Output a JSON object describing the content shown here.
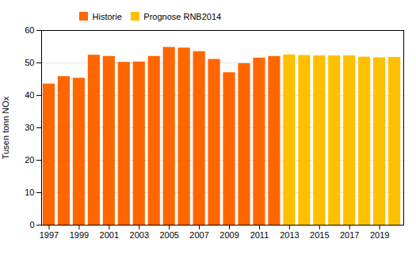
{
  "chart_data": {
    "type": "bar",
    "x": [
      1997,
      1998,
      1999,
      2000,
      2001,
      2002,
      2003,
      2004,
      2005,
      2006,
      2007,
      2008,
      2009,
      2010,
      2011,
      2012,
      2013,
      2014,
      2015,
      2016,
      2017,
      2018,
      2019,
      2020
    ],
    "series": [
      {
        "name": "Historie",
        "color": "#FF6600",
        "values": [
          43.5,
          45.8,
          45.3,
          52.4,
          52.0,
          50.2,
          50.3,
          52.0,
          54.8,
          54.6,
          53.5,
          51.1,
          47.0,
          49.8,
          51.5,
          52.0,
          null,
          null,
          null,
          null,
          null,
          null,
          null,
          null
        ]
      },
      {
        "name": "Prognose RNB2014",
        "color": "#FFC000",
        "values": [
          null,
          null,
          null,
          null,
          null,
          null,
          null,
          null,
          null,
          null,
          null,
          null,
          null,
          null,
          null,
          null,
          52.5,
          52.3,
          52.2,
          52.2,
          52.2,
          51.8,
          51.6,
          51.7
        ]
      }
    ],
    "ylabel": "Tusen tonn NOx",
    "xlim": [
      1996.5,
      2020.6
    ],
    "xticks": [
      1997,
      1999,
      2001,
      2003,
      2005,
      2007,
      2009,
      2011,
      2013,
      2015,
      2017,
      2019
    ],
    "ylim": [
      0,
      60
    ],
    "yticks": [
      0,
      10,
      20,
      30,
      40,
      50,
      60
    ],
    "grid": true,
    "legend": "upper left"
  }
}
